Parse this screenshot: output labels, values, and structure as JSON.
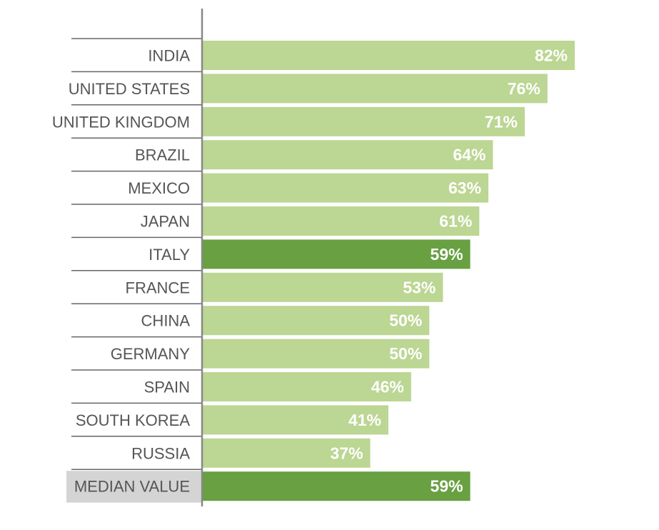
{
  "chart_data": {
    "type": "bar",
    "orientation": "horizontal",
    "categories": [
      "INDIA",
      "UNITED STATES",
      "UNITED KINGDOM",
      "BRAZIL",
      "MEXICO",
      "JAPAN",
      "ITALY",
      "FRANCE",
      "CHINA",
      "GERMANY",
      "SPAIN",
      "SOUTH KOREA",
      "RUSSIA",
      "MEDIAN VALUE"
    ],
    "values": [
      82,
      76,
      71,
      64,
      63,
      61,
      59,
      53,
      50,
      50,
      46,
      41,
      37,
      59
    ],
    "value_labels": [
      "82%",
      "76%",
      "71%",
      "64%",
      "63%",
      "61%",
      "59%",
      "53%",
      "50%",
      "50%",
      "46%",
      "41%",
      "37%",
      "59%"
    ],
    "highlighted": [
      "ITALY",
      "MEDIAN VALUE"
    ],
    "xlim": [
      0,
      100
    ],
    "grid": false,
    "legend": "none"
  },
  "colors": {
    "bar": "#bcd693",
    "bar_highlight": "#68a042",
    "axis": "#888888",
    "row_divider": "#666666",
    "label_text": "#555555",
    "median_label_bg": "#d4d4d4"
  }
}
